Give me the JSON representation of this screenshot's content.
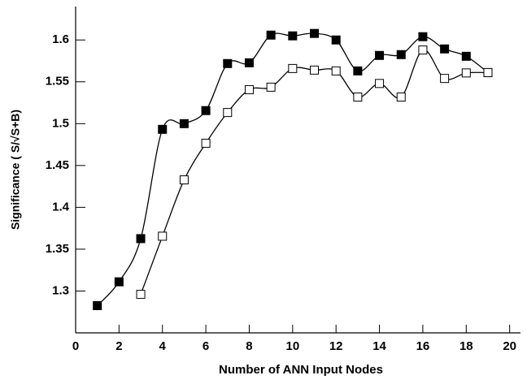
{
  "chart_data": {
    "type": "line",
    "x_label": "Number of ANN Input Nodes",
    "y_label": "Significance ( S/√S+B)",
    "xlim": [
      0,
      20.5
    ],
    "ylim": [
      1.25,
      1.64
    ],
    "xticks": [
      0,
      2,
      4,
      6,
      8,
      10,
      12,
      14,
      16,
      18,
      20
    ],
    "yticks": [
      1.3,
      1.35,
      1.4,
      1.45,
      1.5,
      1.55,
      1.6
    ],
    "series": [
      {
        "marker": "filled-square",
        "color": "#000000",
        "x": [
          1,
          2,
          3,
          4,
          5,
          6,
          7,
          8,
          9,
          10,
          11,
          12,
          13,
          14,
          15,
          16,
          17,
          18,
          19
        ],
        "values": [
          1.2825,
          1.311,
          1.3626,
          1.4932,
          1.5,
          1.5156,
          1.5718,
          1.5727,
          1.6058,
          1.6049,
          1.6078,
          1.6,
          1.563,
          1.5815,
          1.5825,
          1.6039,
          1.5893,
          1.5805,
          1.561
        ]
      },
      {
        "marker": "open-square",
        "color": "#000000",
        "x": [
          3,
          4,
          5,
          6,
          7,
          8,
          9,
          10,
          11,
          12,
          13,
          14,
          15,
          16,
          17,
          18,
          19
        ],
        "values": [
          1.296,
          1.3655,
          1.4328,
          1.4766,
          1.5133,
          1.5406,
          1.5436,
          1.5659,
          1.564,
          1.563,
          1.5318,
          1.548,
          1.5318,
          1.588,
          1.554,
          1.5606,
          1.561
        ]
      }
    ]
  }
}
